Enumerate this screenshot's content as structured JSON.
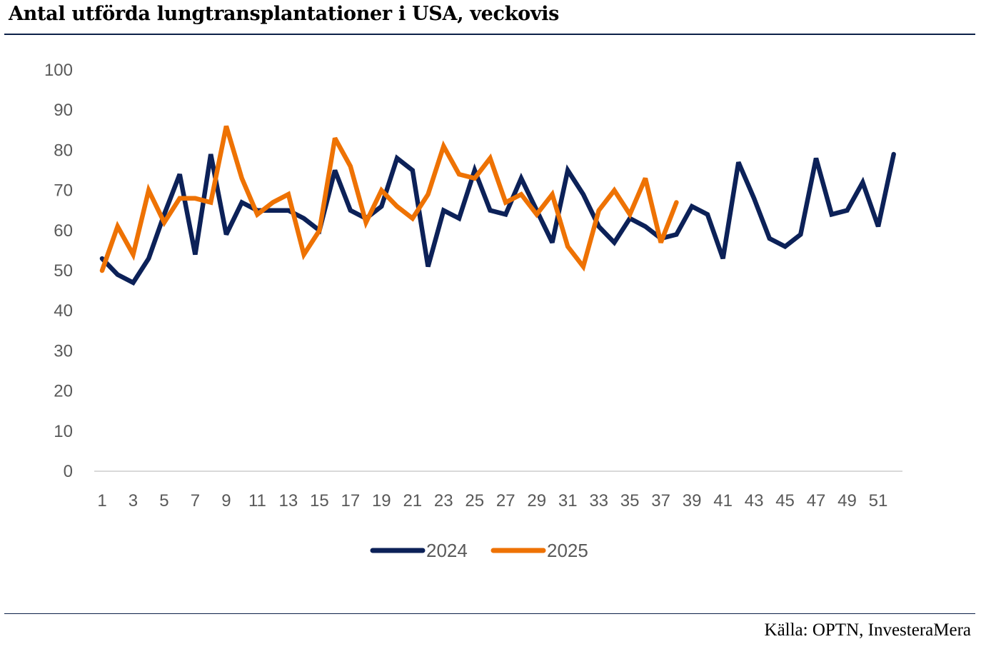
{
  "page": {
    "title": "Antal utförda lungtransplantationer i USA, veckovis",
    "source": "Källa: OPTN, InvesteraMera"
  },
  "chart_data": {
    "type": "line",
    "title": "Antal utförda lungtransplantationer i USA, veckovis",
    "xlabel": "",
    "ylabel": "",
    "ylim": [
      0,
      100
    ],
    "yticks": [
      0,
      10,
      20,
      30,
      40,
      50,
      60,
      70,
      80,
      90,
      100
    ],
    "xlim": [
      1,
      52
    ],
    "xticks": [
      1,
      3,
      5,
      7,
      9,
      11,
      13,
      15,
      17,
      19,
      21,
      23,
      25,
      27,
      29,
      31,
      33,
      35,
      37,
      39,
      41,
      43,
      45,
      47,
      49,
      51
    ],
    "grid": false,
    "legend_position": "bottom",
    "series": [
      {
        "name": "2024",
        "color": "#0c2158",
        "x": [
          1,
          2,
          3,
          4,
          5,
          6,
          7,
          8,
          9,
          10,
          11,
          12,
          13,
          14,
          15,
          16,
          17,
          18,
          19,
          20,
          21,
          22,
          23,
          24,
          25,
          26,
          27,
          28,
          29,
          30,
          31,
          32,
          33,
          34,
          35,
          36,
          37,
          38,
          39,
          40,
          41,
          42,
          43,
          44,
          45,
          46,
          47,
          48,
          49,
          50,
          51,
          52
        ],
        "values": [
          53,
          49,
          47,
          53,
          64,
          74,
          54,
          79,
          59,
          67,
          65,
          65,
          65,
          63,
          60,
          75,
          65,
          63,
          66,
          78,
          75,
          51,
          65,
          63,
          75,
          65,
          64,
          73,
          65,
          57,
          75,
          69,
          61,
          57,
          63,
          61,
          58,
          59,
          66,
          64,
          53,
          77,
          68,
          58,
          56,
          59,
          78,
          64,
          65,
          72,
          61,
          79
        ]
      },
      {
        "name": "2025",
        "color": "#ee7203",
        "x": [
          1,
          2,
          3,
          4,
          5,
          6,
          7,
          8,
          9,
          10,
          11,
          12,
          13,
          14,
          15,
          16,
          17,
          18,
          19,
          20,
          21,
          22,
          23,
          24,
          25,
          26,
          27,
          28,
          29,
          30,
          31,
          32,
          33,
          34,
          35,
          36,
          37,
          38
        ],
        "values": [
          50,
          61,
          54,
          70,
          62,
          68,
          68,
          67,
          86,
          73,
          64,
          67,
          69,
          54,
          60,
          83,
          76,
          62,
          70,
          66,
          63,
          69,
          81,
          74,
          73,
          78,
          67,
          69,
          64,
          69,
          56,
          51,
          65,
          70,
          64,
          73,
          57,
          67
        ]
      }
    ]
  }
}
